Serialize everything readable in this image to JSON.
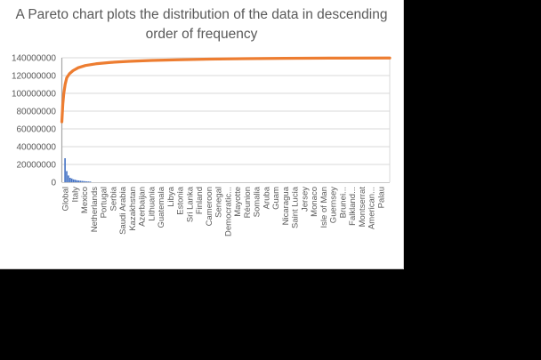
{
  "window": {
    "background": "#000000",
    "chart_background": "#ffffff",
    "chart_border": "#c9c7c7"
  },
  "chart_data": {
    "type": "pareto (bar + cumulative line)",
    "title": "A Pareto chart plots the distribution of the data in descending order of frequency",
    "title_color": "#595959",
    "grid": true,
    "gridline_color": "#d9d9d9",
    "axis_line_color": "#a6a6a6",
    "ylim": [
      0,
      140000000
    ],
    "y_ticks": [
      "0",
      "20000000",
      "40000000",
      "60000000",
      "80000000",
      "100000000",
      "120000000",
      "140000000"
    ],
    "x_tick_labels": [
      "Global",
      "Italy",
      "Mexico",
      "Netherlands",
      "Portugal",
      "Serbia",
      "Saudi Arabia",
      "Kazakhstan",
      "Azerbaijan",
      "Lithuania",
      "Guatemala",
      "Libya",
      "Estonia",
      "Sri Lanka",
      "Finland",
      "Cameroon",
      "Senegal",
      "Democratic...",
      "Mayotte",
      "Réunion",
      "Somalia",
      "Aruba",
      "Guam",
      "Nicaragua",
      "Saint Lucia",
      "Jersey",
      "Monaco",
      "Isle of Man",
      "Guernsey",
      "Brunei...",
      "Falkland...",
      "Montserrat",
      "American...",
      "Palau"
    ],
    "bar_series": {
      "name": "frequency-bars",
      "color": "#4472c4",
      "leading_values": [
        27000000,
        12500000,
        7600000,
        5000000,
        4200000,
        3200000,
        2800000,
        2200000,
        2000000,
        1700000,
        1500000,
        1300000,
        1100000,
        900000,
        800000,
        700000
      ],
      "remaining_values_approx": 0
    },
    "line_series": {
      "name": "cumulative-line",
      "color": "#ed7d31",
      "points_xfrac_value": [
        [
          0.0,
          68000000
        ],
        [
          0.003,
          88000000
        ],
        [
          0.006,
          100000000
        ],
        [
          0.01,
          110000000
        ],
        [
          0.015,
          117500000
        ],
        [
          0.023,
          122000000
        ],
        [
          0.034,
          125500000
        ],
        [
          0.05,
          128800000
        ],
        [
          0.072,
          131300000
        ],
        [
          0.104,
          133200000
        ],
        [
          0.148,
          134800000
        ],
        [
          0.205,
          136000000
        ],
        [
          0.273,
          137000000
        ],
        [
          0.354,
          137800000
        ],
        [
          0.449,
          138500000
        ],
        [
          0.558,
          139000000
        ],
        [
          0.68,
          139400000
        ],
        [
          0.815,
          139600000
        ],
        [
          1.0,
          139800000
        ]
      ]
    }
  }
}
